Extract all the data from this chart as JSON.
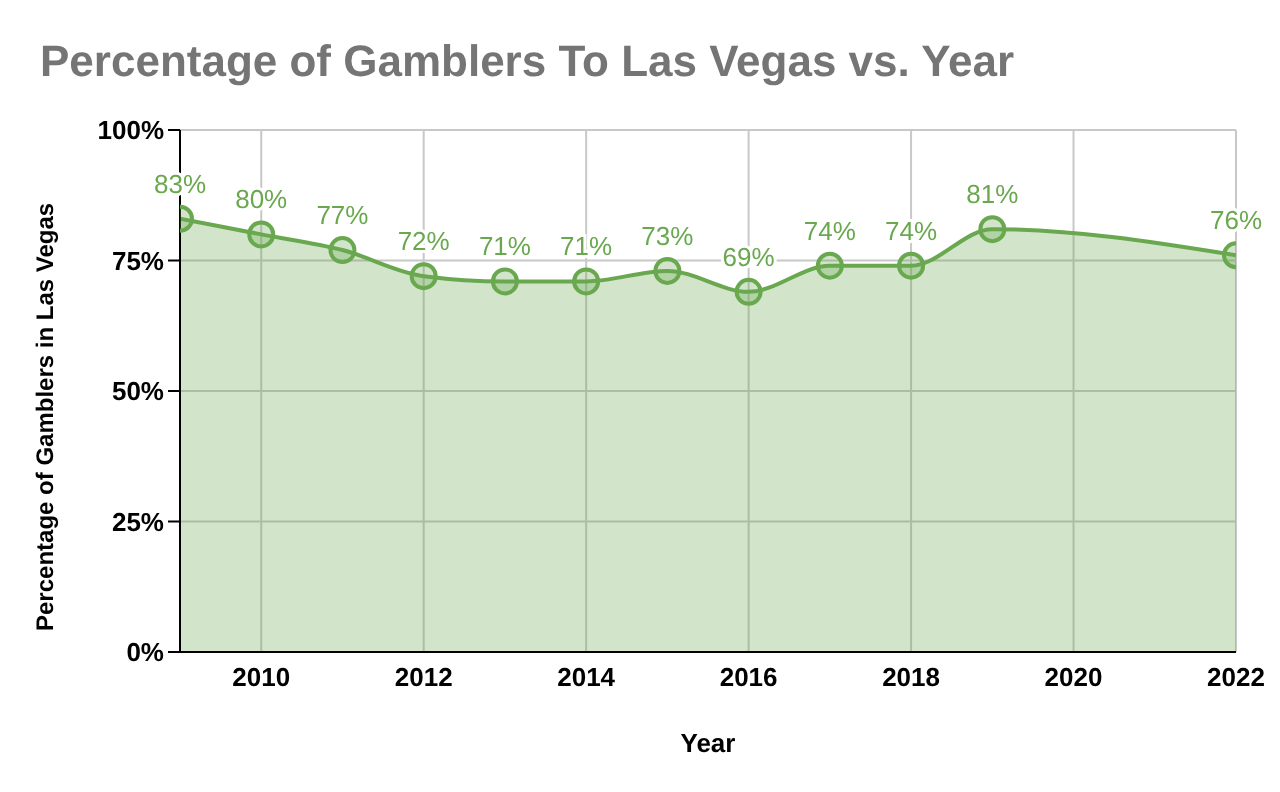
{
  "chart_data": {
    "type": "area",
    "title": "Percentage of Gamblers To Las Vegas vs. Year",
    "xlabel": "Year",
    "ylabel": "Percentage of Gamblers in Las Vegas",
    "x": [
      2009,
      2010,
      2011,
      2012,
      2013,
      2014,
      2015,
      2016,
      2017,
      2018,
      2019,
      2022
    ],
    "series": [
      {
        "color": "#6aa84f",
        "values": [
          83,
          80,
          77,
          72,
          71,
          71,
          73,
          69,
          74,
          74,
          81,
          76
        ],
        "value_labels": [
          "83%",
          "80%",
          "77%",
          "72%",
          "71%",
          "71%",
          "73%",
          "69%",
          "74%",
          "74%",
          "81%",
          "76%"
        ]
      }
    ],
    "xlim": [
      2009,
      2022
    ],
    "xticks": [
      2010,
      2012,
      2014,
      2016,
      2018,
      2020,
      2022
    ],
    "ylim": [
      0,
      100
    ],
    "yticks": [
      {
        "value": 0,
        "label": "0%"
      },
      {
        "value": 25,
        "label": "25%"
      },
      {
        "value": 50,
        "label": "50%"
      },
      {
        "value": 75,
        "label": "75%"
      },
      {
        "value": 100,
        "label": "100%"
      }
    ],
    "grid": true,
    "marker": "circle",
    "legend": false
  }
}
